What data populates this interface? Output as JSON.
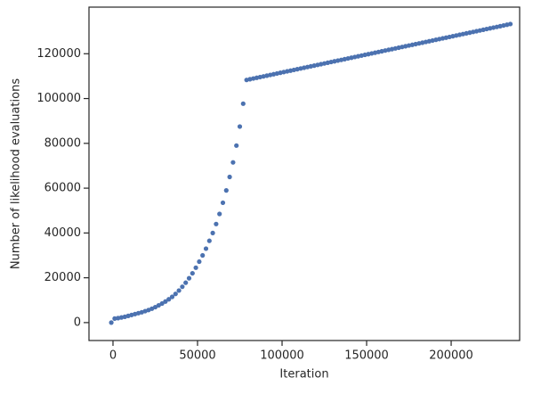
{
  "chart_data": {
    "type": "scatter",
    "x_label": "Iteration",
    "y_label": "Number of likelihood evaluations",
    "color": "#4c72b0",
    "xlim": [
      -14200,
      240500
    ],
    "ylim": [
      -8000,
      140800
    ],
    "xticks": [
      0,
      50000,
      100000,
      150000,
      200000
    ],
    "yticks": [
      0,
      20000,
      40000,
      60000,
      80000,
      100000,
      120000
    ],
    "x": [
      -1000,
      1000,
      3000,
      5000,
      7000,
      9000,
      11000,
      13000,
      15000,
      17000,
      19000,
      21000,
      23000,
      25000,
      27000,
      29000,
      31000,
      33000,
      35000,
      37000,
      39000,
      41000,
      43000,
      45000,
      47000,
      49000,
      51000,
      53000,
      55000,
      57000,
      59000,
      61000,
      63000,
      65000,
      67000,
      69000,
      71000,
      73000,
      75000,
      77000,
      79000,
      81000,
      83000,
      85000,
      87000,
      89000,
      91000,
      93000,
      95000,
      97000,
      99000,
      101000,
      103000,
      105000,
      107000,
      109000,
      111000,
      113000,
      115000,
      117000,
      119000,
      121000,
      123000,
      125000,
      127000,
      129000,
      131000,
      133000,
      135000,
      137000,
      139000,
      141000,
      143000,
      145000,
      147000,
      149000,
      151000,
      153000,
      155000,
      157000,
      159000,
      161000,
      163000,
      165000,
      167000,
      169000,
      171000,
      173000,
      175000,
      177000,
      179000,
      181000,
      183000,
      185000,
      187000,
      189000,
      191000,
      193000,
      195000,
      197000,
      199000,
      201000,
      203000,
      205000,
      207000,
      209000,
      211000,
      213000,
      215000,
      217000,
      219000,
      221000,
      223000,
      225000,
      227000,
      229000,
      231000,
      233000,
      235000
    ],
    "values": [
      0,
      1800,
      2000,
      2300,
      2600,
      3000,
      3400,
      3800,
      4200,
      4600,
      5100,
      5600,
      6200,
      6900,
      7700,
      8500,
      9400,
      10400,
      11500,
      12800,
      14300,
      16000,
      17800,
      19800,
      22000,
      24500,
      27200,
      30000,
      33000,
      36500,
      40000,
      44000,
      48500,
      53500,
      59000,
      65000,
      71500,
      79000,
      87500,
      97700,
      108300,
      108620,
      108940,
      109260,
      109580,
      109900,
      110220,
      110540,
      110860,
      111180,
      111500,
      111820,
      112140,
      112460,
      112780,
      113100,
      113420,
      113740,
      114060,
      114380,
      114700,
      115020,
      115340,
      115660,
      115980,
      116300,
      116620,
      116940,
      117260,
      117580,
      117900,
      118220,
      118540,
      118860,
      119180,
      119500,
      119820,
      120140,
      120460,
      120780,
      121100,
      121420,
      121740,
      122060,
      122380,
      122700,
      123020,
      123340,
      123660,
      123980,
      124300,
      124620,
      124940,
      125260,
      125580,
      125900,
      126220,
      126540,
      126860,
      127180,
      127500,
      127820,
      128140,
      128460,
      128780,
      129100,
      129420,
      129740,
      130060,
      130380,
      130700,
      131020,
      131340,
      131660,
      131980,
      132300,
      132620,
      132940,
      133260
    ]
  }
}
